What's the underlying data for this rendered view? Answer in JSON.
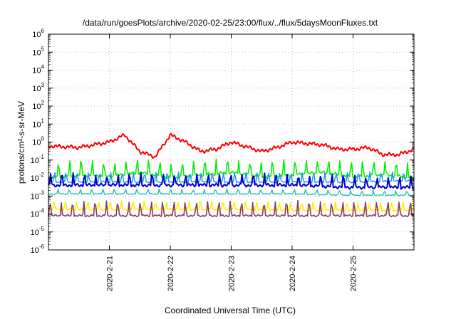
{
  "chart_data": {
    "type": "line",
    "title": "/data/run/goesPlots/archive/2020-02-25/23:00/flux/../flux/5daysMoonFluxes.txt",
    "xlabel": "Coordinated Universal Time (UTC)",
    "ylabel": "protons/cm²-s-sr-MeV",
    "yscale": "log",
    "ylim": [
      1e-06,
      1000000.0
    ],
    "y_tick_labels": [
      {
        "base": "10",
        "exp": "-6"
      },
      {
        "base": "10",
        "exp": "-5"
      },
      {
        "base": "10",
        "exp": "-4"
      },
      {
        "base": "10",
        "exp": "-3"
      },
      {
        "base": "10",
        "exp": "-2"
      },
      {
        "base": "10",
        "exp": "-1"
      },
      {
        "base": "10",
        "exp": "0"
      },
      {
        "base": "10",
        "exp": "1"
      },
      {
        "base": "10",
        "exp": "2"
      },
      {
        "base": "10",
        "exp": "3"
      },
      {
        "base": "10",
        "exp": "4"
      },
      {
        "base": "10",
        "exp": "5"
      },
      {
        "base": "10",
        "exp": "6"
      }
    ],
    "xlim": [
      "2020-02-20",
      "2020-02-26"
    ],
    "x_ticks": [
      "2020-2-21",
      "2020-2-22",
      "2020-2-23",
      "2020-2-24",
      "2020-2-25"
    ],
    "grid": true,
    "legend": "none",
    "series": [
      {
        "color": "#ff0000",
        "x": [
          "2020-02-20 00:00",
          "2020-02-20 12:00",
          "2020-02-21 00:00",
          "2020-02-21 06:00",
          "2020-02-21 12:00",
          "2020-02-21 18:00",
          "2020-02-22 00:00",
          "2020-02-22 06:00",
          "2020-02-22 12:00",
          "2020-02-22 18:00",
          "2020-02-23 00:00",
          "2020-02-23 12:00",
          "2020-02-23 18:00",
          "2020-02-24 00:00",
          "2020-02-24 12:00",
          "2020-02-24 18:00",
          "2020-02-25 00:00",
          "2020-02-25 06:00",
          "2020-02-25 12:00",
          "2020-02-25 18:00",
          "2020-02-26 00:00"
        ],
        "y": [
          0.6,
          0.5,
          1.0,
          2.5,
          0.3,
          0.15,
          2.5,
          1.0,
          0.3,
          0.4,
          1.0,
          0.3,
          0.5,
          1.0,
          0.7,
          0.4,
          0.4,
          0.5,
          0.2,
          0.2,
          0.4
        ]
      },
      {
        "color": "#00ee00",
        "x": [
          "2020-02-20 00:00",
          "2020-02-20 12:00",
          "2020-02-21 00:00",
          "2020-02-21 12:00",
          "2020-02-22 00:00",
          "2020-02-22 12:00",
          "2020-02-23 00:00",
          "2020-02-23 12:00",
          "2020-02-24 00:00",
          "2020-02-24 12:00",
          "2020-02-25 00:00",
          "2020-02-25 12:00",
          "2020-02-26 00:00"
        ],
        "y": [
          0.01,
          0.015,
          0.012,
          0.02,
          0.01,
          0.015,
          0.02,
          0.012,
          0.015,
          0.02,
          0.012,
          0.015,
          0.01
        ]
      },
      {
        "color": "#1e90ff",
        "x": [
          "2020-02-20 00:00",
          "2020-02-21 00:00",
          "2020-02-22 00:00",
          "2020-02-23 00:00",
          "2020-02-24 00:00",
          "2020-02-25 00:00",
          "2020-02-26 00:00"
        ],
        "y": [
          0.006,
          0.006,
          0.006,
          0.006,
          0.006,
          0.006,
          0.007
        ]
      },
      {
        "color": "#0000cd",
        "x": [
          "2020-02-20 00:00",
          "2020-02-21 00:00",
          "2020-02-22 00:00",
          "2020-02-23 00:00",
          "2020-02-24 00:00",
          "2020-02-25 00:00",
          "2020-02-26 00:00"
        ],
        "y": [
          0.004,
          0.004,
          0.004,
          0.004,
          0.004,
          0.003,
          0.003
        ]
      },
      {
        "color": "#20c0b0",
        "x": [
          "2020-02-20 00:00",
          "2020-02-21 00:00",
          "2020-02-22 00:00",
          "2020-02-23 00:00",
          "2020-02-24 00:00",
          "2020-02-25 00:00",
          "2020-02-26 00:00"
        ],
        "y": [
          0.0013,
          0.0013,
          0.0013,
          0.0013,
          0.0013,
          0.0011,
          0.0011
        ]
      },
      {
        "color": "#ffee00",
        "x": [
          "2020-02-20 00:00",
          "2020-02-21 00:00",
          "2020-02-22 00:00",
          "2020-02-23 00:00",
          "2020-02-24 00:00",
          "2020-02-25 00:00",
          "2020-02-26 00:00"
        ],
        "y": [
          0.00018,
          0.00018,
          0.00018,
          0.00018,
          0.00016,
          0.00016,
          0.00016
        ]
      },
      {
        "color": "#8b3a62",
        "x": [
          "2020-02-20 00:00",
          "2020-02-21 00:00",
          "2020-02-22 00:00",
          "2020-02-23 00:00",
          "2020-02-24 00:00",
          "2020-02-25 00:00",
          "2020-02-26 00:00"
        ],
        "y": [
          8e-05,
          8e-05,
          8e-05,
          8e-05,
          8e-05,
          8e-05,
          8e-05
        ]
      }
    ]
  }
}
